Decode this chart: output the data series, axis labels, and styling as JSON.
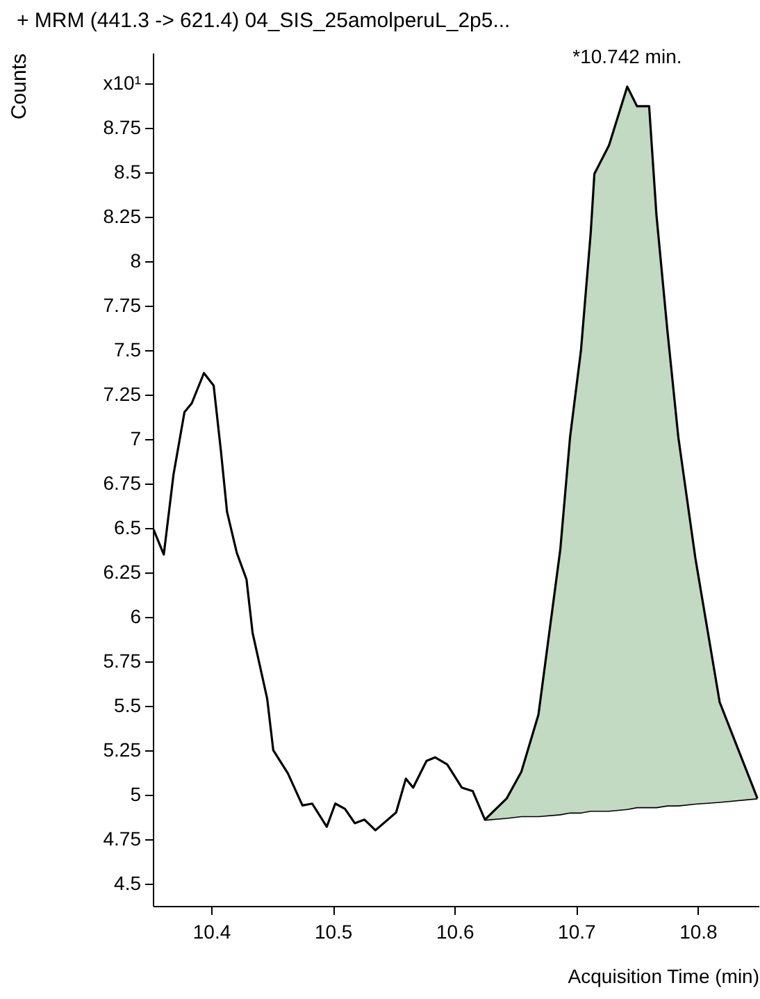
{
  "chart_data": {
    "type": "line",
    "title": "+ MRM (441.3 -> 621.4) 04_SIS_25amolperuL_2p5...",
    "xlabel": "Acquisition Time (min)",
    "ylabel": "Counts",
    "xlim": [
      10.352,
      10.85
    ],
    "xticks": [
      10.4,
      10.5,
      10.6,
      10.7,
      10.8
    ],
    "ylim": [
      4.375,
      9.17
    ],
    "yticks": [
      4.5,
      4.75,
      5,
      5.25,
      5.5,
      5.75,
      6,
      6.25,
      6.5,
      6.75,
      7,
      7.25,
      7.5,
      7.75,
      8,
      8.25,
      8.5,
      8.75,
      {
        "value": 9,
        "label": "x10¹"
      }
    ],
    "annotations": [
      {
        "text": "*10.742 min.",
        "x": 10.742,
        "y": 8.98
      }
    ],
    "series": [
      {
        "color": "#000000",
        "x": [
          10.625,
          10.643,
          10.655,
          10.669,
          10.687,
          10.695,
          10.704,
          10.712,
          10.715,
          10.727,
          10.742,
          10.75,
          10.76,
          10.766,
          10.775,
          10.784,
          10.798,
          10.818,
          10.849
        ],
        "values": [
          4.86,
          4.87,
          4.88,
          4.88,
          4.89,
          4.9,
          4.9,
          4.91,
          4.91,
          4.91,
          4.92,
          4.93,
          4.93,
          4.93,
          4.94,
          4.94,
          4.95,
          4.96,
          4.98
        ]
      },
      {
        "type": "area",
        "color": "#c2d9c2",
        "x": [
          10.625,
          10.643,
          10.655,
          10.669,
          10.687,
          10.695,
          10.704,
          10.712,
          10.715,
          10.727,
          10.742,
          10.75,
          10.76,
          10.766,
          10.775,
          10.784,
          10.798,
          10.818,
          10.849
        ],
        "values": [
          4.86,
          4.98,
          5.13,
          5.45,
          6.38,
          7.01,
          7.5,
          8.16,
          8.49,
          8.65,
          8.98,
          8.87,
          8.87,
          8.26,
          7.61,
          7.01,
          6.33,
          5.52,
          4.98
        ]
      },
      {
        "type": "line",
        "color": "#000000",
        "x": [
          10.352,
          10.361,
          10.369,
          10.378,
          10.384,
          10.394,
          10.402,
          10.408,
          10.413,
          10.421,
          10.429,
          10.434,
          10.446,
          10.451,
          10.463,
          10.475,
          10.483,
          10.495,
          10.502,
          10.51,
          10.518,
          10.526,
          10.535,
          10.552,
          10.56,
          10.566,
          10.577,
          10.584,
          10.594,
          10.606,
          10.615,
          10.625,
          10.643,
          10.655,
          10.669,
          10.687,
          10.695,
          10.704,
          10.712,
          10.715,
          10.727,
          10.742,
          10.75,
          10.76,
          10.766,
          10.775,
          10.784,
          10.798,
          10.818,
          10.849
        ],
        "values": [
          6.5,
          6.35,
          6.8,
          7.15,
          7.2,
          7.37,
          7.3,
          6.93,
          6.59,
          6.36,
          6.21,
          5.91,
          5.54,
          5.25,
          5.12,
          4.94,
          4.95,
          4.82,
          4.95,
          4.92,
          4.84,
          4.86,
          4.8,
          4.9,
          5.09,
          5.04,
          5.19,
          5.21,
          5.17,
          5.04,
          5.02,
          4.86,
          4.98,
          5.13,
          5.45,
          6.38,
          7.01,
          7.5,
          8.16,
          8.49,
          8.65,
          8.98,
          8.87,
          8.87,
          8.26,
          7.61,
          7.01,
          6.33,
          5.52,
          4.98
        ]
      }
    ]
  }
}
